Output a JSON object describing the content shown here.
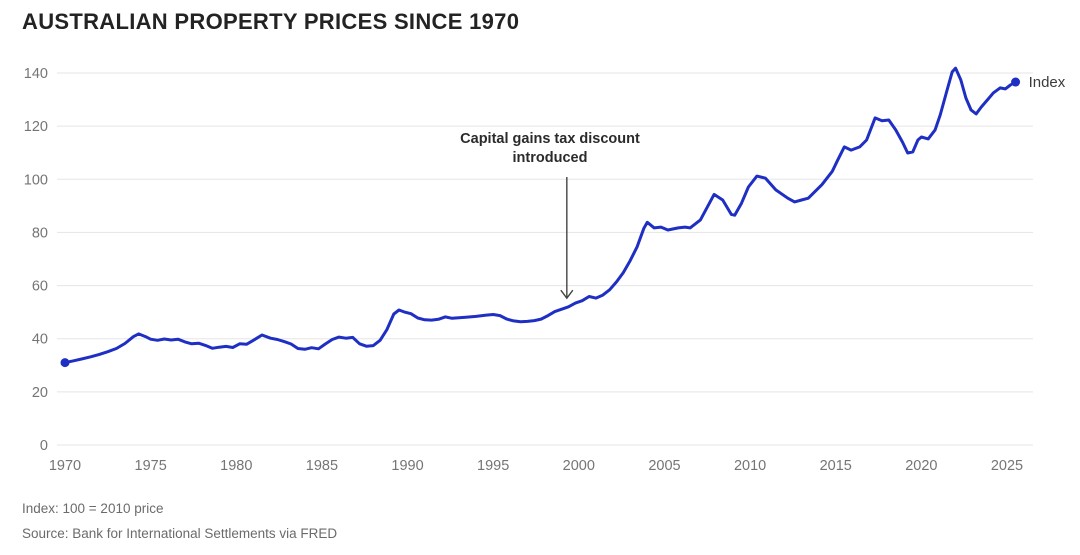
{
  "header": {
    "title": "AUSTRALIAN PROPERTY PRICES SINCE 1970"
  },
  "chart_data": {
    "type": "line",
    "title": "AUSTRALIAN PROPERTY PRICES SINCE 1970",
    "xlabel": "",
    "ylabel": "",
    "xlim": [
      1969.5,
      2026.5
    ],
    "ylim": [
      0,
      140
    ],
    "grid": "horizontal",
    "y_ticks": [
      0,
      20,
      40,
      60,
      80,
      100,
      120,
      140
    ],
    "x_ticks": [
      1970,
      1975,
      1980,
      1985,
      1990,
      1995,
      2000,
      2005,
      2010,
      2015,
      2020,
      2025
    ],
    "end_label": "Index",
    "annotation": {
      "line1": "Capital gains tax discount",
      "line2": "introduced",
      "arrow_points_to_year": 1999.3,
      "arrow_points_to_value": 53
    },
    "series": [
      {
        "name": "Index",
        "color": "#1f2fc4",
        "points": [
          [
            1970.0,
            31
          ],
          [
            1970.5,
            31.7
          ],
          [
            1971.0,
            32.4
          ],
          [
            1971.5,
            33.2
          ],
          [
            1972.0,
            34.1
          ],
          [
            1972.5,
            35.1
          ],
          [
            1973.0,
            36.3
          ],
          [
            1973.5,
            38.2
          ],
          [
            1974.0,
            40.8
          ],
          [
            1974.3,
            41.8
          ],
          [
            1974.7,
            40.8
          ],
          [
            1975.0,
            39.8
          ],
          [
            1975.4,
            39.4
          ],
          [
            1975.8,
            39.9
          ],
          [
            1976.2,
            39.5
          ],
          [
            1976.6,
            39.8
          ],
          [
            1977.0,
            38.8
          ],
          [
            1977.4,
            38.1
          ],
          [
            1977.8,
            38.3
          ],
          [
            1978.2,
            37.5
          ],
          [
            1978.6,
            36.4
          ],
          [
            1979.0,
            36.8
          ],
          [
            1979.4,
            37.1
          ],
          [
            1979.8,
            36.7
          ],
          [
            1980.2,
            38.1
          ],
          [
            1980.6,
            37.9
          ],
          [
            1981.0,
            39.4
          ],
          [
            1981.5,
            41.4
          ],
          [
            1982.0,
            40.2
          ],
          [
            1982.4,
            39.7
          ],
          [
            1982.8,
            38.9
          ],
          [
            1983.2,
            38.0
          ],
          [
            1983.6,
            36.3
          ],
          [
            1984.0,
            36.0
          ],
          [
            1984.4,
            36.6
          ],
          [
            1984.8,
            36.2
          ],
          [
            1985.2,
            38.0
          ],
          [
            1985.6,
            39.7
          ],
          [
            1986.0,
            40.6
          ],
          [
            1986.4,
            40.2
          ],
          [
            1986.8,
            40.5
          ],
          [
            1987.2,
            38.1
          ],
          [
            1987.6,
            37.2
          ],
          [
            1988.0,
            37.4
          ],
          [
            1988.4,
            39.4
          ],
          [
            1988.8,
            43.5
          ],
          [
            1989.2,
            49.3
          ],
          [
            1989.5,
            50.8
          ],
          [
            1989.8,
            50.1
          ],
          [
            1990.2,
            49.4
          ],
          [
            1990.6,
            47.8
          ],
          [
            1991.0,
            47.1
          ],
          [
            1991.4,
            47.0
          ],
          [
            1991.8,
            47.3
          ],
          [
            1992.2,
            48.2
          ],
          [
            1992.6,
            47.7
          ],
          [
            1993.0,
            47.9
          ],
          [
            1993.4,
            48.1
          ],
          [
            1994.0,
            48.4
          ],
          [
            1994.6,
            48.9
          ],
          [
            1995.0,
            49.1
          ],
          [
            1995.4,
            48.7
          ],
          [
            1995.8,
            47.4
          ],
          [
            1996.2,
            46.7
          ],
          [
            1996.6,
            46.4
          ],
          [
            1997.0,
            46.5
          ],
          [
            1997.4,
            46.8
          ],
          [
            1997.8,
            47.4
          ],
          [
            1998.2,
            48.7
          ],
          [
            1998.6,
            50.2
          ],
          [
            1999.0,
            51.1
          ],
          [
            1999.4,
            52.0
          ],
          [
            1999.8,
            53.4
          ],
          [
            2000.2,
            54.3
          ],
          [
            2000.6,
            55.9
          ],
          [
            2001.0,
            55.3
          ],
          [
            2001.4,
            56.4
          ],
          [
            2001.8,
            58.4
          ],
          [
            2002.2,
            61.4
          ],
          [
            2002.6,
            64.9
          ],
          [
            2003.0,
            69.4
          ],
          [
            2003.4,
            74.6
          ],
          [
            2003.8,
            81.6
          ],
          [
            2004.0,
            83.8
          ],
          [
            2004.4,
            81.7
          ],
          [
            2004.8,
            82.0
          ],
          [
            2005.2,
            80.9
          ],
          [
            2005.8,
            81.7
          ],
          [
            2006.2,
            82.0
          ],
          [
            2006.5,
            81.7
          ],
          [
            2007.1,
            84.7
          ],
          [
            2007.9,
            94.3
          ],
          [
            2008.4,
            92.2
          ],
          [
            2008.9,
            86.8
          ],
          [
            2009.1,
            86.5
          ],
          [
            2009.5,
            91.0
          ],
          [
            2009.9,
            97.1
          ],
          [
            2010.4,
            101.2
          ],
          [
            2010.9,
            100.4
          ],
          [
            2011.5,
            96.0
          ],
          [
            2012.2,
            92.9
          ],
          [
            2012.6,
            91.5
          ],
          [
            2013.0,
            92.2
          ],
          [
            2013.4,
            92.9
          ],
          [
            2014.2,
            98.0
          ],
          [
            2014.8,
            103.0
          ],
          [
            2015.1,
            107.0
          ],
          [
            2015.5,
            112.2
          ],
          [
            2015.9,
            111.0
          ],
          [
            2016.4,
            112.2
          ],
          [
            2016.8,
            114.8
          ],
          [
            2017.3,
            123.1
          ],
          [
            2017.7,
            122.0
          ],
          [
            2018.1,
            122.3
          ],
          [
            2018.5,
            118.6
          ],
          [
            2018.9,
            114.0
          ],
          [
            2019.2,
            109.9
          ],
          [
            2019.5,
            110.3
          ],
          [
            2019.8,
            114.8
          ],
          [
            2020.0,
            115.9
          ],
          [
            2020.4,
            115.2
          ],
          [
            2020.8,
            118.6
          ],
          [
            2021.1,
            124.2
          ],
          [
            2021.5,
            133.6
          ],
          [
            2021.8,
            140.4
          ],
          [
            2022.0,
            141.8
          ],
          [
            2022.3,
            137.4
          ],
          [
            2022.6,
            130.6
          ],
          [
            2022.9,
            126.1
          ],
          [
            2023.2,
            124.6
          ],
          [
            2023.5,
            127.2
          ],
          [
            2023.9,
            130.2
          ],
          [
            2024.2,
            132.5
          ],
          [
            2024.6,
            134.4
          ],
          [
            2024.9,
            134.0
          ],
          [
            2025.2,
            135.5
          ],
          [
            2025.5,
            136.6
          ]
        ]
      }
    ]
  },
  "colors": {
    "line": "#1f2fc4",
    "grid": "#e5e5e5",
    "tick_text": "#757575",
    "title_text": "#232323",
    "annotation_text": "#2b2b2b",
    "arrow": "#444444",
    "footer_text": "#6b6b6b",
    "background": "#ffffff"
  },
  "footer": {
    "note": "Index: 100 = 2010 price",
    "source": "Source: Bank for International Settlements via FRED"
  }
}
